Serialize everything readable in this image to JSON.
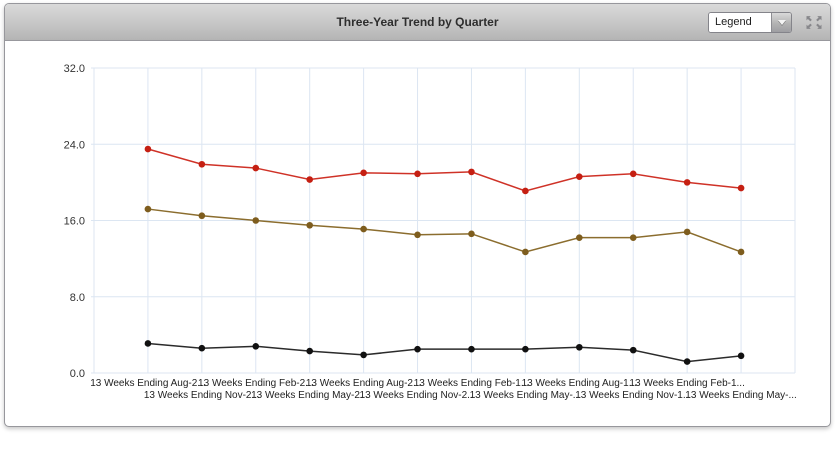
{
  "header": {
    "title": "Three-Year Trend by Quarter",
    "legend_dropdown": {
      "value": "Legend"
    }
  },
  "colors": {
    "grid": "#dce6f2",
    "axis": "#ccd9ea",
    "header_accent": "#c6c6c6",
    "panel_border": "#97979c"
  },
  "chart_data": {
    "type": "line",
    "title": "Three-Year Trend by Quarter",
    "xlabel": "",
    "ylabel": "",
    "ylim": [
      0,
      32
    ],
    "y_ticks": [
      "0.0",
      "8.0",
      "16.0",
      "24.0",
      "32.0"
    ],
    "grid": true,
    "legend_position": "collapsed-dropdown",
    "categories": [
      "13 Weeks Ending Aug-2...",
      "13 Weeks Ending Nov-2...",
      "13 Weeks Ending Feb-2...",
      "13 Weeks Ending May-2...",
      "13 Weeks Ending Aug-2...",
      "13 Weeks Ending Nov-2...",
      "13 Weeks Ending Feb-1...",
      "13 Weeks Ending May-...",
      "13 Weeks Ending Aug-1...",
      "13 Weeks Ending Nov-1...",
      "13 Weeks Ending Feb-1...",
      "13 Weeks Ending May-..."
    ],
    "series": [
      {
        "name": "red-series",
        "marker_color": "#c51f12",
        "line_color": "#cf3227",
        "values": [
          23.5,
          21.9,
          21.5,
          20.3,
          21.0,
          20.9,
          21.1,
          19.1,
          20.6,
          20.9,
          20.0,
          19.4
        ]
      },
      {
        "name": "olive-series",
        "marker_color": "#7e5d1e",
        "line_color": "#8b6d2e",
        "values": [
          17.2,
          16.5,
          16.0,
          15.5,
          15.1,
          14.5,
          14.6,
          12.7,
          14.2,
          14.2,
          14.8,
          12.7
        ]
      },
      {
        "name": "black-series",
        "marker_color": "#111111",
        "line_color": "#2b2b2b",
        "values": [
          3.1,
          2.6,
          2.8,
          2.3,
          1.9,
          2.5,
          2.5,
          2.5,
          2.7,
          2.4,
          1.2,
          1.8
        ]
      }
    ]
  }
}
